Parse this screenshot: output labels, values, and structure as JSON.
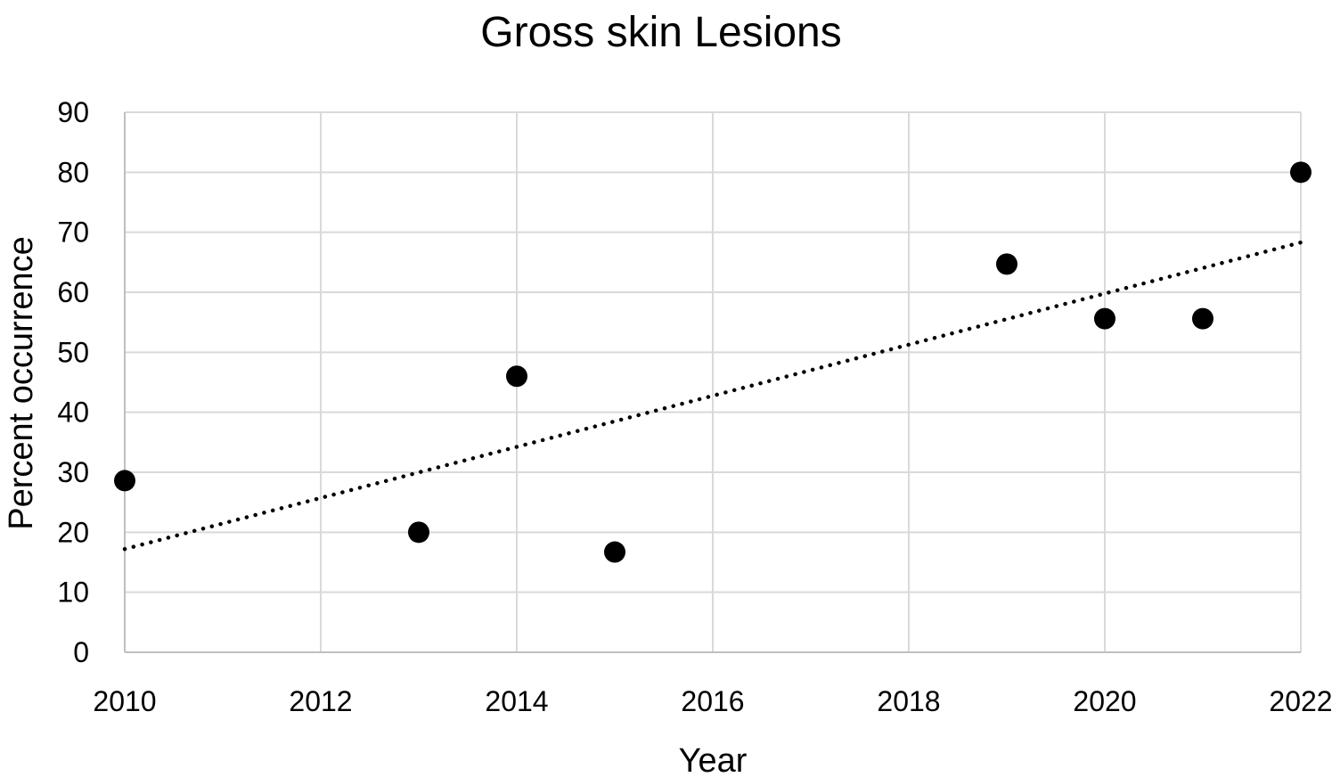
{
  "chart_data": {
    "type": "scatter",
    "title": "Gross skin Lesions",
    "xlabel": "Year",
    "ylabel": "Percent occurrence",
    "xlim": [
      2010,
      2022
    ],
    "ylim": [
      0,
      90
    ],
    "xticks": [
      2010,
      2012,
      2014,
      2016,
      2018,
      2020,
      2022
    ],
    "yticks": [
      0,
      10,
      20,
      30,
      40,
      50,
      60,
      70,
      80,
      90
    ],
    "grid": true,
    "series": [
      {
        "x": [
          2010,
          2013,
          2014,
          2015,
          2019,
          2020,
          2021,
          2022
        ],
        "y": [
          28.6,
          20.0,
          46.0,
          16.7,
          64.7,
          55.6,
          55.6,
          80.0
        ],
        "color": "#000000"
      }
    ],
    "trendline": {
      "style": "dotted",
      "color": "#000000",
      "x": [
        2010,
        2022
      ],
      "y": [
        17.2,
        68.3
      ]
    }
  }
}
